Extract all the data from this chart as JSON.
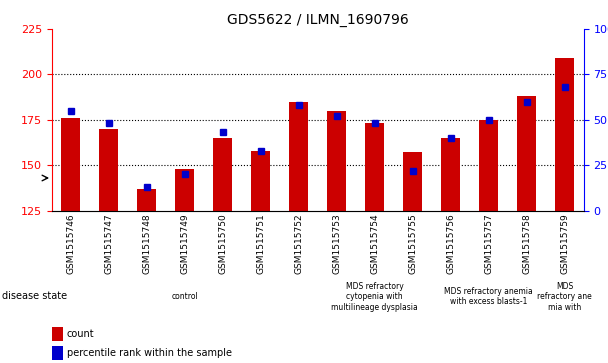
{
  "title": "GDS5622 / ILMN_1690796",
  "samples": [
    "GSM1515746",
    "GSM1515747",
    "GSM1515748",
    "GSM1515749",
    "GSM1515750",
    "GSM1515751",
    "GSM1515752",
    "GSM1515753",
    "GSM1515754",
    "GSM1515755",
    "GSM1515756",
    "GSM1515757",
    "GSM1515758",
    "GSM1515759"
  ],
  "counts": [
    176,
    170,
    137,
    148,
    165,
    158,
    185,
    180,
    173,
    157,
    165,
    175,
    188,
    209
  ],
  "percentile_ranks": [
    55,
    48,
    13,
    20,
    43,
    33,
    58,
    52,
    48,
    22,
    40,
    50,
    60,
    68
  ],
  "ylim_left": [
    125,
    225
  ],
  "ylim_right": [
    0,
    100
  ],
  "yticks_left": [
    125,
    150,
    175,
    200,
    225
  ],
  "yticks_right": [
    0,
    25,
    50,
    75,
    100
  ],
  "bar_color": "#cc0000",
  "dot_color": "#0000cc",
  "background_color": "#ffffff",
  "title_color": "#000000",
  "disease_groups": [
    {
      "label": "control",
      "start": 0,
      "end": 7,
      "color": "#e8f8e8"
    },
    {
      "label": "MDS refractory\ncytopenia with\nmultilineage dysplasia",
      "start": 7,
      "end": 10,
      "color": "#90ee90"
    },
    {
      "label": "MDS refractory anemia\nwith excess blasts-1",
      "start": 10,
      "end": 13,
      "color": "#90ee90"
    },
    {
      "label": "MDS\nrefractory ane\nmia with",
      "start": 13,
      "end": 14,
      "color": "#90ee90"
    }
  ],
  "bar_width": 0.5,
  "dot_size": 4.0,
  "grid_yticks": [
    150,
    175,
    200
  ],
  "xlabel_fontsize": 6.5,
  "ylabel_fontsize": 8,
  "title_fontsize": 10
}
